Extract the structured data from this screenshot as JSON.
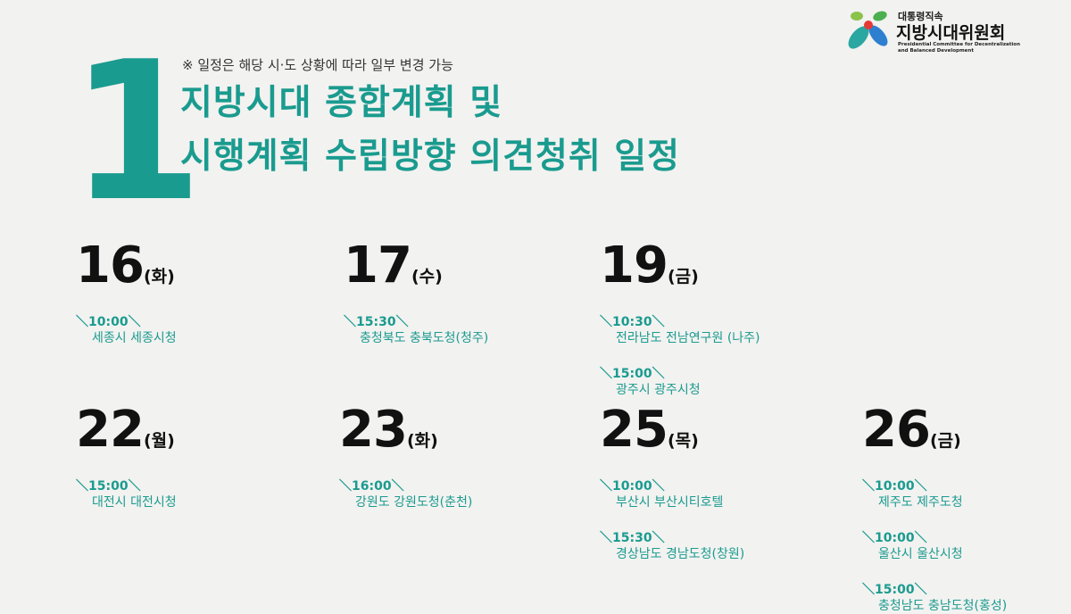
{
  "logo": {
    "sup": "대통령직속",
    "name": "지방시대위원회",
    "en": "Presidential Committee for Decentralization and Balanced Development"
  },
  "big_number": "1",
  "note": "※ 일정은 해당 시·도 상황에 따라 일부 변경 가능",
  "title": [
    "지방시대 종합계획 및",
    "시행계획 수립방향 의견청취 일정"
  ],
  "colors": {
    "accent": "#1a9b8f",
    "background": "#f2f2f0"
  },
  "days": [
    {
      "date": "16",
      "weekday": "(화)",
      "events": [
        {
          "time": "＼10:00＼",
          "place": "세종시 세종시청"
        }
      ]
    },
    {
      "date": "17",
      "weekday": "(수)",
      "events": [
        {
          "time": "＼15:30＼",
          "place": "충청북도 충북도청(청주)"
        }
      ]
    },
    {
      "date": "19",
      "weekday": "(금)",
      "events": [
        {
          "time": "＼10:30＼",
          "place": "전라남도 전남연구원 (나주)"
        },
        {
          "time": "＼15:00＼",
          "place": "광주시 광주시청"
        }
      ]
    },
    {
      "date": "22",
      "weekday": "(월)",
      "events": [
        {
          "time": "＼15:00＼",
          "place": "대전시 대전시청"
        }
      ]
    },
    {
      "date": "23",
      "weekday": "(화)",
      "events": [
        {
          "time": "＼16:00＼",
          "place": "강원도 강원도청(춘천)"
        }
      ]
    },
    {
      "date": "25",
      "weekday": "(목)",
      "events": [
        {
          "time": "＼10:00＼",
          "place": "부산시 부산시티호텔"
        },
        {
          "time": "＼15:30＼",
          "place": "경상남도 경남도청(창원)"
        }
      ]
    },
    {
      "date": "26",
      "weekday": "(금)",
      "events": [
        {
          "time": "＼10:00＼",
          "place": "제주도 제주도청"
        },
        {
          "time": "＼10:00＼",
          "place": "울산시 울산시청"
        },
        {
          "time": "＼15:00＼",
          "place": "충청남도 충남도청(홍성)"
        }
      ]
    }
  ]
}
